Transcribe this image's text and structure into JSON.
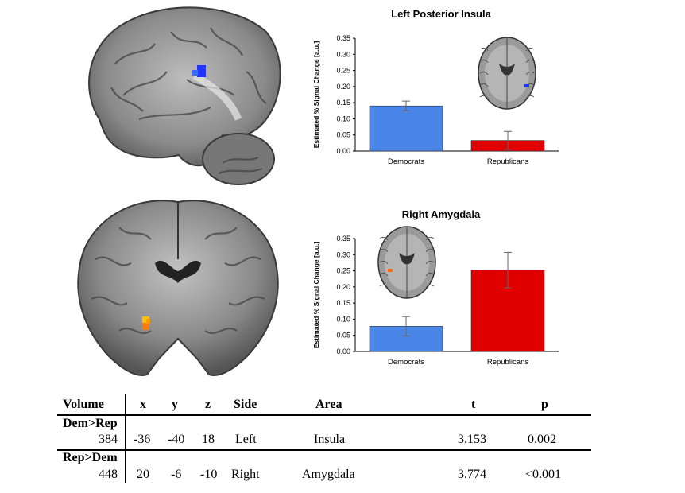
{
  "colors": {
    "democrats": "#4a86e8",
    "republicans": "#e00000",
    "blue_activation": "#2233ff",
    "orange_activation": "#ff7a00"
  },
  "brain_images": [
    {
      "view": "sagittal",
      "activation_color": "blue"
    },
    {
      "view": "coronal",
      "activation_color": "orange"
    }
  ],
  "chart_data": [
    {
      "type": "bar",
      "title": "Left Posterior Insula",
      "ylabel": "Estimated % Signal Change [a.u.]",
      "categories": [
        "Democrats",
        "Republicans"
      ],
      "values": [
        0.14,
        0.033
      ],
      "errors": [
        0.015,
        0.028
      ],
      "colors": [
        "#4a86e8",
        "#e00000"
      ],
      "ylim": [
        0,
        0.35
      ],
      "yticks": [
        "0.00",
        "0.05",
        "0.10",
        "0.15",
        "0.20",
        "0.25",
        "0.30",
        "0.35"
      ],
      "inset": "axial brain slice (top-right)"
    },
    {
      "type": "bar",
      "title": "Right Amygdala",
      "ylabel": "Estimated % Signal Change [a.u.]",
      "categories": [
        "Democrats",
        "Republicans"
      ],
      "values": [
        0.078,
        0.252
      ],
      "errors": [
        0.03,
        0.055
      ],
      "colors": [
        "#4a86e8",
        "#e00000"
      ],
      "ylim": [
        0,
        0.35
      ],
      "yticks": [
        "0.00",
        "0.05",
        "0.10",
        "0.15",
        "0.20",
        "0.25",
        "0.30",
        "0.35"
      ],
      "inset": "axial brain slice (top-left)"
    }
  ],
  "table": {
    "headers": {
      "volume": "Volume",
      "x": "x",
      "y": "y",
      "z": "z",
      "side": "Side",
      "area": "Area",
      "t": "t",
      "p": "p"
    },
    "groups": [
      {
        "label": "Dem>Rep",
        "row": {
          "volume": "384",
          "x": "-36",
          "y": "-40",
          "z": "18",
          "side": "Left",
          "area": "Insula",
          "t": "3.153",
          "p": "0.002"
        }
      },
      {
        "label": "Rep>Dem",
        "row": {
          "volume": "448",
          "x": "20",
          "y": "-6",
          "z": "-10",
          "side": "Right",
          "area": "Amygdala",
          "t": "3.774",
          "p": "<0.001"
        }
      }
    ]
  }
}
